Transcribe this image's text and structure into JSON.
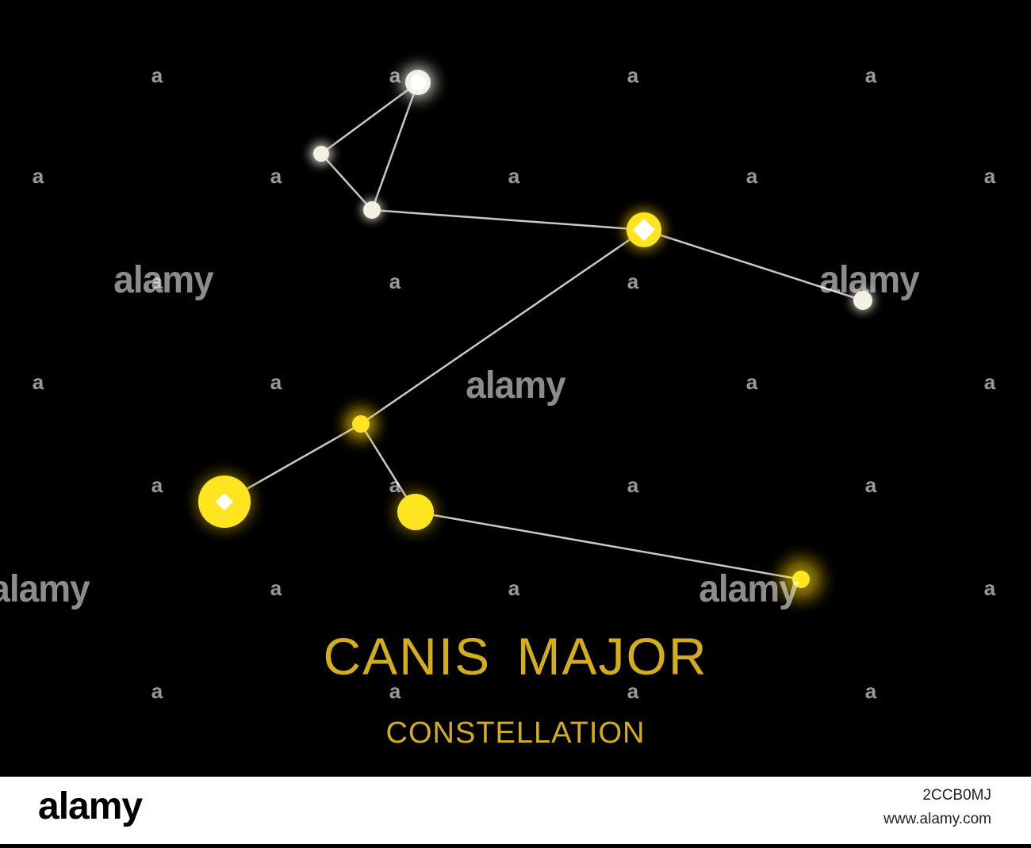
{
  "title": "CANIS  MAJOR",
  "subtitle": "CONSTELLATION",
  "colors": {
    "background": "#000000",
    "title": "#d4ad1c",
    "star_white": "#ffffff",
    "star_yellow": "#ffe31a",
    "line": "#c8c8c8"
  },
  "watermark": {
    "small_mark": "a",
    "large_mark": "alamy"
  },
  "footer": {
    "logo": "alamy",
    "image_code": "2CCB0MJ",
    "site": "www.alamy.com"
  }
}
